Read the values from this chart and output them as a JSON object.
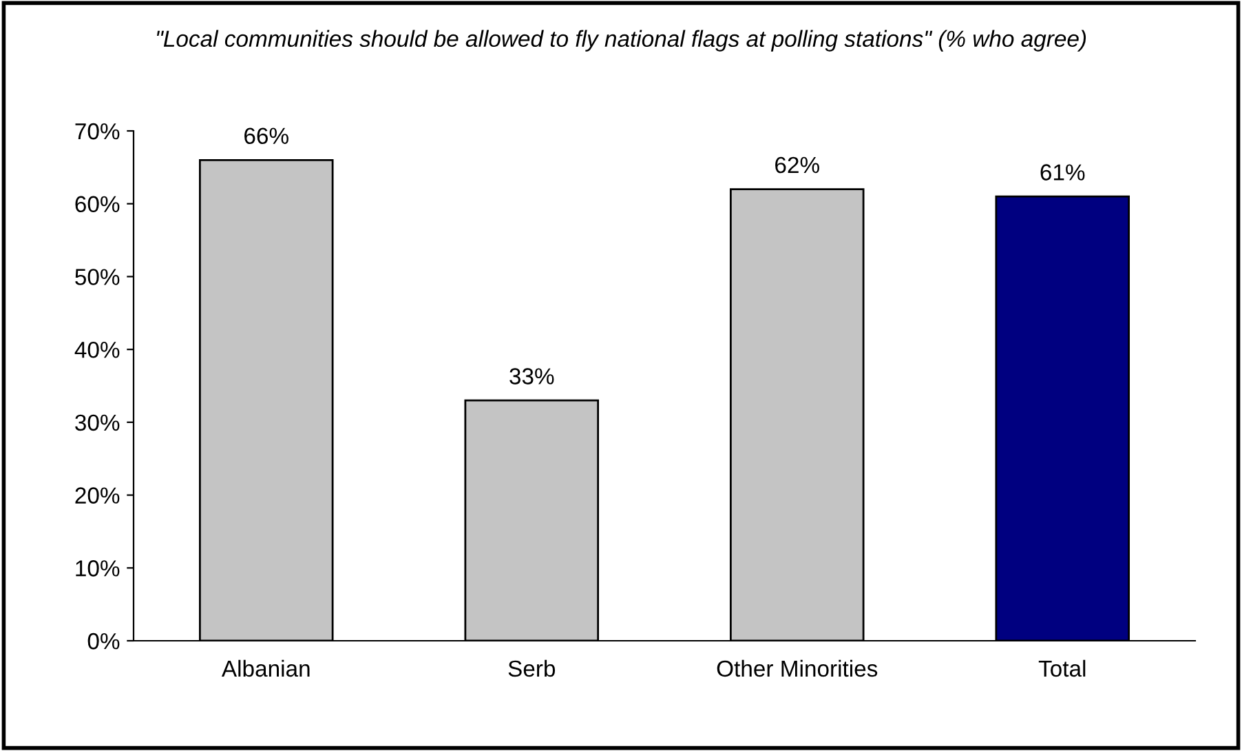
{
  "chart_data": {
    "type": "bar",
    "title": "\"Local communities should be allowed to fly national flags at polling stations\" (% who agree)",
    "categories": [
      "Albanian",
      "Serb",
      "Other Minorities",
      "Total"
    ],
    "values": [
      66,
      33,
      62,
      61
    ],
    "colors": [
      "#c4c4c4",
      "#c4c4c4",
      "#c4c4c4",
      "#000080"
    ],
    "value_labels": [
      "66%",
      "33%",
      "62%",
      "61%"
    ],
    "ylim": [
      0,
      70
    ],
    "yticks": [
      {
        "value": 0,
        "label": "0%"
      },
      {
        "value": 10,
        "label": "10%"
      },
      {
        "value": 20,
        "label": "20%"
      },
      {
        "value": 30,
        "label": "30%"
      },
      {
        "value": 40,
        "label": "40%"
      },
      {
        "value": 50,
        "label": "50%"
      },
      {
        "value": 60,
        "label": "60%"
      },
      {
        "value": 70,
        "label": "70%"
      }
    ],
    "grid": false,
    "legend": false
  }
}
